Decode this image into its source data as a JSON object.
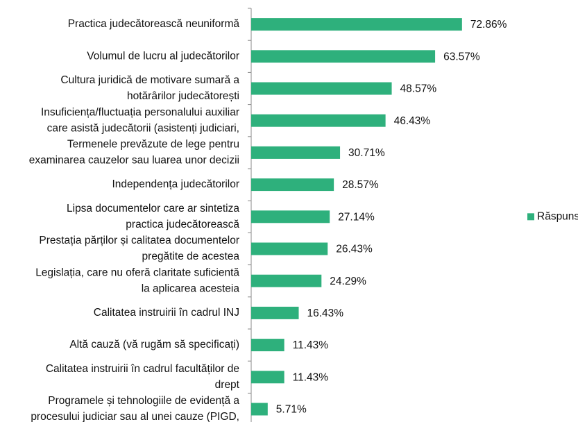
{
  "chart_data": {
    "type": "hbar",
    "categories": [
      [
        "Practica judecătorească neuniformă"
      ],
      [
        "Volumul de lucru al judecătorilor"
      ],
      [
        "Cultura juridică de motivare sumară a",
        "hotărârilor judecătorești"
      ],
      [
        "Insuficiența/fluctuația personalului auxiliar",
        "care asistă judecătorii (asistenți judiciari,"
      ],
      [
        "Termenele prevăzute de lege pentru",
        "examinarea cauzelor sau luarea unor decizii"
      ],
      [
        "Independența judecătorilor"
      ],
      [
        "Lipsa documentelor care ar sintetiza",
        "practica judecătorească"
      ],
      [
        "Prestația părților și calitatea documentelor",
        "pregătite de acestea"
      ],
      [
        "Legislația, care nu oferă claritate suficientă",
        "la aplicarea acesteia"
      ],
      [
        "Calitatea instruirii în cadrul INJ"
      ],
      [
        "Altă cauză (vă rugăm să specificați)"
      ],
      [
        "Calitatea instruirii în cadrul facultăților de",
        "drept"
      ],
      [
        "Programele și tehnologiile de evidență a",
        "procesului judiciar sau al unei cauze (PIGD,"
      ]
    ],
    "series": [
      {
        "name": "Răspunsuri",
        "color": "#2eb07c",
        "values": [
          72.86,
          63.57,
          48.57,
          46.43,
          30.71,
          28.57,
          27.14,
          26.43,
          24.29,
          16.43,
          11.43,
          11.43,
          5.71
        ],
        "value_labels": [
          "72.86%",
          "63.57%",
          "48.57%",
          "46.43%",
          "30.71%",
          "28.57%",
          "27.14%",
          "26.43%",
          "24.29%",
          "16.43%",
          "11.43%",
          "11.43%",
          "5.71%"
        ]
      }
    ],
    "xlim": [
      0,
      100
    ],
    "legend": "right"
  }
}
